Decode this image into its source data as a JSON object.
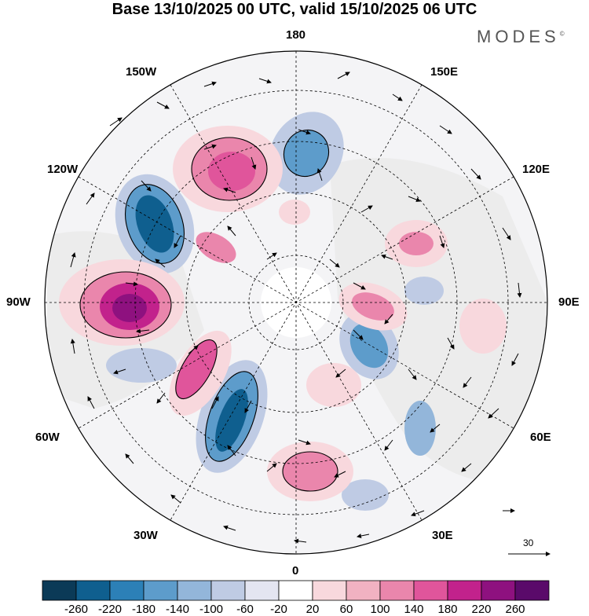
{
  "title": "Base 13/10/2025 00 UTC, valid 15/10/2025 06 UTC",
  "logo": "MODES",
  "logo_mark": "©",
  "longitude_labels": {
    "top": "180",
    "bottom": "0",
    "left": "90W",
    "right": "90E",
    "upper_left_1": "150W",
    "upper_left_2": "120W",
    "upper_right_1": "150E",
    "upper_right_2": "120E",
    "lower_left_1": "60W",
    "lower_left_2": "30W",
    "lower_right_1": "60E",
    "lower_right_2": "30E"
  },
  "vector_scale_label": "30",
  "colorbar": {
    "labels": [
      "-260",
      "-220",
      "-180",
      "-140",
      "-100",
      "-60",
      "-20",
      "20",
      "60",
      "100",
      "140",
      "180",
      "220",
      "260"
    ],
    "colors": [
      "#0b3a57",
      "#0f5f8f",
      "#2c80b7",
      "#5d9ccb",
      "#93b6da",
      "#bfcbe4",
      "#e4e5f1",
      "#ffffff",
      "#f8d8dd",
      "#f1b2c2",
      "#ea86ac",
      "#e0559b",
      "#c2228c",
      "#8e117f",
      "#5a0a6a"
    ]
  },
  "anomaly_colors": {
    "neg_strong": "#0f5f8f",
    "neg_mid": "#5d9ccb",
    "neg_weak": "#bfcbe4",
    "pos_strong": "#c2228c",
    "pos_mid": "#ea86ac",
    "pos_weak": "#f8d8dd",
    "land": "#ececec"
  }
}
